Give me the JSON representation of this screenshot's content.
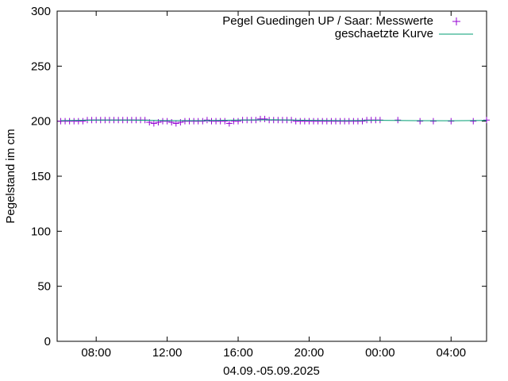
{
  "chart_data": {
    "type": "line",
    "xlabel": "04.09.-05.09.2025",
    "ylabel": "Pegelstand im cm",
    "ylim": [
      0,
      300
    ],
    "yticks": [
      0,
      50,
      100,
      150,
      200,
      250,
      300
    ],
    "xlim_hours": [
      5.8,
      30.0
    ],
    "xticks": [
      {
        "label": "08:00",
        "hour": 8
      },
      {
        "label": "12:00",
        "hour": 12
      },
      {
        "label": "16:00",
        "hour": 16
      },
      {
        "label": "20:00",
        "hour": 20
      },
      {
        "label": "00:00",
        "hour": 24
      },
      {
        "label": "04:00",
        "hour": 28
      }
    ],
    "grid": false,
    "legend_position": "top-right",
    "series": [
      {
        "name": "Pegel Guedingen UP / Saar: Messwerte",
        "style": "points",
        "marker": "+",
        "color": "#9400d3",
        "x": [
          6.0,
          6.25,
          6.5,
          6.75,
          7.0,
          7.25,
          7.5,
          7.75,
          8.0,
          8.25,
          8.5,
          8.75,
          9.0,
          9.25,
          9.5,
          9.75,
          10.0,
          10.25,
          10.5,
          10.75,
          11.0,
          11.25,
          11.5,
          11.75,
          12.0,
          12.25,
          12.5,
          12.75,
          13.0,
          13.25,
          13.5,
          13.75,
          14.0,
          14.25,
          14.5,
          14.75,
          15.0,
          15.25,
          15.5,
          15.75,
          16.0,
          16.25,
          16.5,
          16.75,
          17.0,
          17.25,
          17.5,
          17.75,
          18.0,
          18.25,
          18.5,
          18.75,
          19.0,
          19.25,
          19.5,
          19.75,
          20.0,
          20.25,
          20.5,
          20.75,
          21.0,
          21.25,
          21.5,
          21.75,
          22.0,
          22.25,
          22.5,
          22.75,
          23.0,
          23.25,
          23.5,
          23.75,
          24.0,
          25.0,
          26.25,
          27.0,
          28.0,
          29.25,
          30.0
        ],
        "y": [
          200,
          200,
          200,
          200,
          200,
          200,
          201,
          201,
          201,
          201,
          201,
          201,
          201,
          201,
          201,
          201,
          201,
          201,
          201,
          201,
          199,
          198,
          199,
          200,
          200,
          199,
          198,
          199,
          200,
          200,
          200,
          200,
          200,
          201,
          200,
          200,
          200,
          200,
          198,
          200,
          200,
          201,
          201,
          201,
          201,
          202,
          202,
          201,
          201,
          201,
          201,
          201,
          201,
          200,
          200,
          200,
          200,
          200,
          200,
          200,
          200,
          200,
          200,
          200,
          200,
          200,
          200,
          200,
          200,
          201,
          201,
          201,
          201,
          201,
          200,
          200,
          200,
          200,
          201
        ]
      },
      {
        "name": "geschaetzte Kurve",
        "style": "line",
        "color": "#009e73",
        "x": [
          6.0,
          8.0,
          10.0,
          12.0,
          14.0,
          16.0,
          18.0,
          20.0,
          22.0,
          24.0,
          26.0,
          28.0,
          30.0
        ],
        "y": [
          200.5,
          201,
          201,
          200.5,
          200.5,
          201,
          201.3,
          200.8,
          200.5,
          200.8,
          200.5,
          200.4,
          200.6
        ]
      }
    ]
  }
}
